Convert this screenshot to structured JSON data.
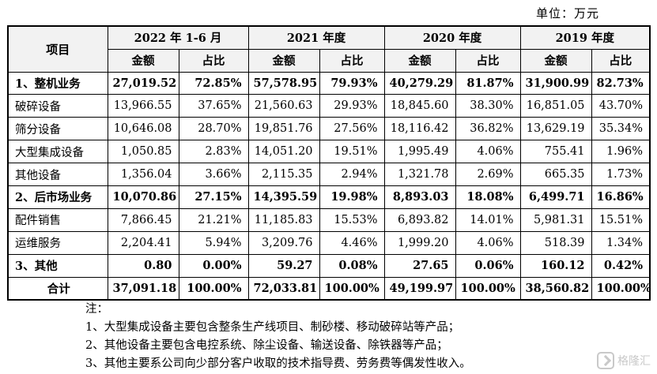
{
  "unit_label": "单位：万元",
  "header": {
    "item_label": "项目",
    "periods": [
      "2022 年 1-6 月",
      "2021 年度",
      "2020 年度",
      "2019 年度"
    ],
    "amount_label": "金额",
    "ratio_label": "占比"
  },
  "rows": [
    {
      "name": "1、整机业务",
      "bold": true,
      "values": [
        "27,019.52",
        "72.85%",
        "57,578.95",
        "79.93%",
        "40,279.29",
        "81.87%",
        "31,900.99",
        "82.73%"
      ]
    },
    {
      "name": "破碎设备",
      "bold": false,
      "values": [
        "13,966.55",
        "37.65%",
        "21,560.63",
        "29.93%",
        "18,845.60",
        "38.30%",
        "16,851.05",
        "43.70%"
      ]
    },
    {
      "name": "筛分设备",
      "bold": false,
      "values": [
        "10,646.08",
        "28.70%",
        "19,851.76",
        "27.56%",
        "18,116.42",
        "36.82%",
        "13,629.19",
        "35.34%"
      ]
    },
    {
      "name": "大型集成设备",
      "bold": false,
      "values": [
        "1,050.85",
        "2.83%",
        "14,051.20",
        "19.51%",
        "1,995.49",
        "4.06%",
        "755.41",
        "1.96%"
      ]
    },
    {
      "name": "其他设备",
      "bold": false,
      "values": [
        "1,356.04",
        "3.66%",
        "2,115.35",
        "2.94%",
        "1,321.78",
        "2.69%",
        "665.35",
        "1.73%"
      ]
    },
    {
      "name": "2、后市场业务",
      "bold": true,
      "values": [
        "10,070.86",
        "27.15%",
        "14,395.59",
        "19.98%",
        "8,893.03",
        "18.08%",
        "6,499.71",
        "16.86%"
      ]
    },
    {
      "name": "配件销售",
      "bold": false,
      "values": [
        "7,866.45",
        "21.21%",
        "11,185.83",
        "15.53%",
        "6,893.82",
        "14.01%",
        "5,981.31",
        "15.51%"
      ]
    },
    {
      "name": "运维服务",
      "bold": false,
      "values": [
        "2,204.41",
        "5.94%",
        "3,209.76",
        "4.46%",
        "1,999.20",
        "4.06%",
        "518.39",
        "1.34%"
      ]
    },
    {
      "name": "3、其他",
      "bold": true,
      "values": [
        "0.80",
        "0.00%",
        "59.27",
        "0.08%",
        "27.65",
        "0.06%",
        "160.12",
        "0.42%"
      ]
    },
    {
      "name": "合计",
      "bold": true,
      "total": true,
      "values": [
        "37,091.18",
        "100.00%",
        "72,033.81",
        "100.00%",
        "49,199.97",
        "100.00%",
        "38,560.82",
        "100.00%"
      ]
    }
  ],
  "notes": {
    "title": "注：",
    "items": [
      "1、大型集成设备主要包含整条生产线项目、制砂楼、移动破碎站等产品；",
      "2、其他设备主要包含电控系统、除尘设备、输送设备、除铁器等产品；",
      "3、其他主要系公司向少部分客户收取的技术指导费、劳务费等偶发性收入。"
    ]
  },
  "watermark": {
    "icon": "gelonghui-logo-icon",
    "text": "格隆汇"
  }
}
